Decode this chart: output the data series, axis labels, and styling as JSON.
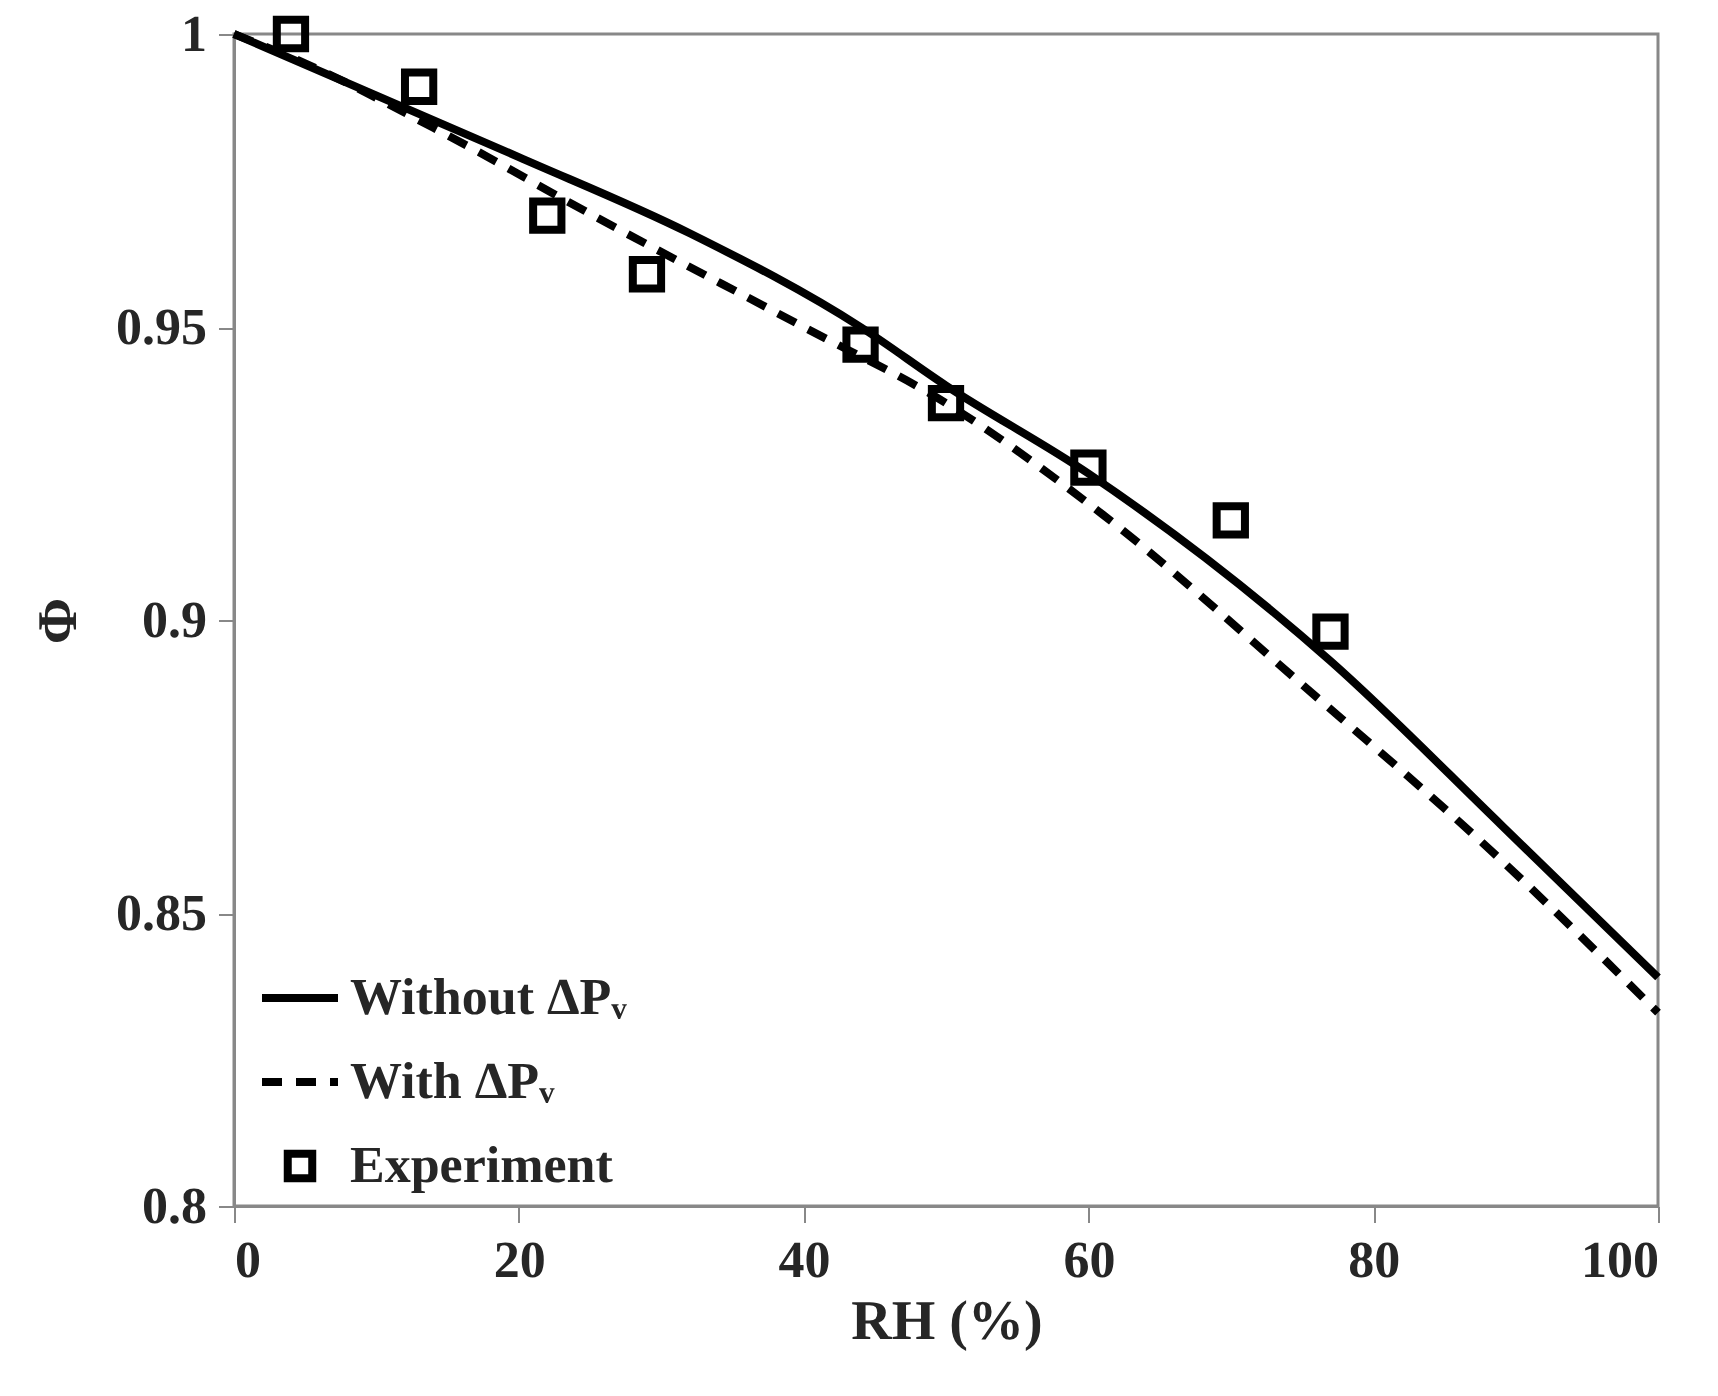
{
  "chart_data": {
    "type": "line",
    "xlabel": "RH (%)",
    "ylabel": "Φ",
    "xlim": [
      0,
      100
    ],
    "ylim": [
      0.8,
      1
    ],
    "xticks": [
      0,
      20,
      40,
      60,
      80,
      100
    ],
    "yticks": [
      0.8,
      0.85,
      0.9,
      0.95,
      1
    ],
    "grid": false,
    "legend": "bottom left",
    "series": [
      {
        "name": "Without ΔPᵥ",
        "line_style": "solid",
        "color": "#000000",
        "x": [
          0,
          20,
          32,
          44,
          50,
          60,
          77,
          89,
          100
        ],
        "values": [
          1,
          0.979,
          0.966,
          0.95,
          0.94,
          0.925,
          0.893,
          0.865,
          0.839
        ]
      },
      {
        "name": "With ΔPᵥ",
        "line_style": "dashed",
        "color": "#000000",
        "x": [
          0,
          5,
          14,
          26,
          40,
          50,
          61,
          75,
          89,
          100
        ],
        "values": [
          1,
          0.995,
          0.984,
          0.968,
          0.95,
          0.937,
          0.918,
          0.889,
          0.859,
          0.833
        ]
      },
      {
        "name": "Experiment",
        "type": "scatter",
        "marker": "square",
        "color": "#000000",
        "x": [
          4,
          13,
          22,
          29,
          44,
          50,
          60,
          70,
          77
        ],
        "values": [
          1.0,
          0.991,
          0.969,
          0.959,
          0.947,
          0.937,
          0.926,
          0.917,
          0.898
        ]
      }
    ]
  }
}
